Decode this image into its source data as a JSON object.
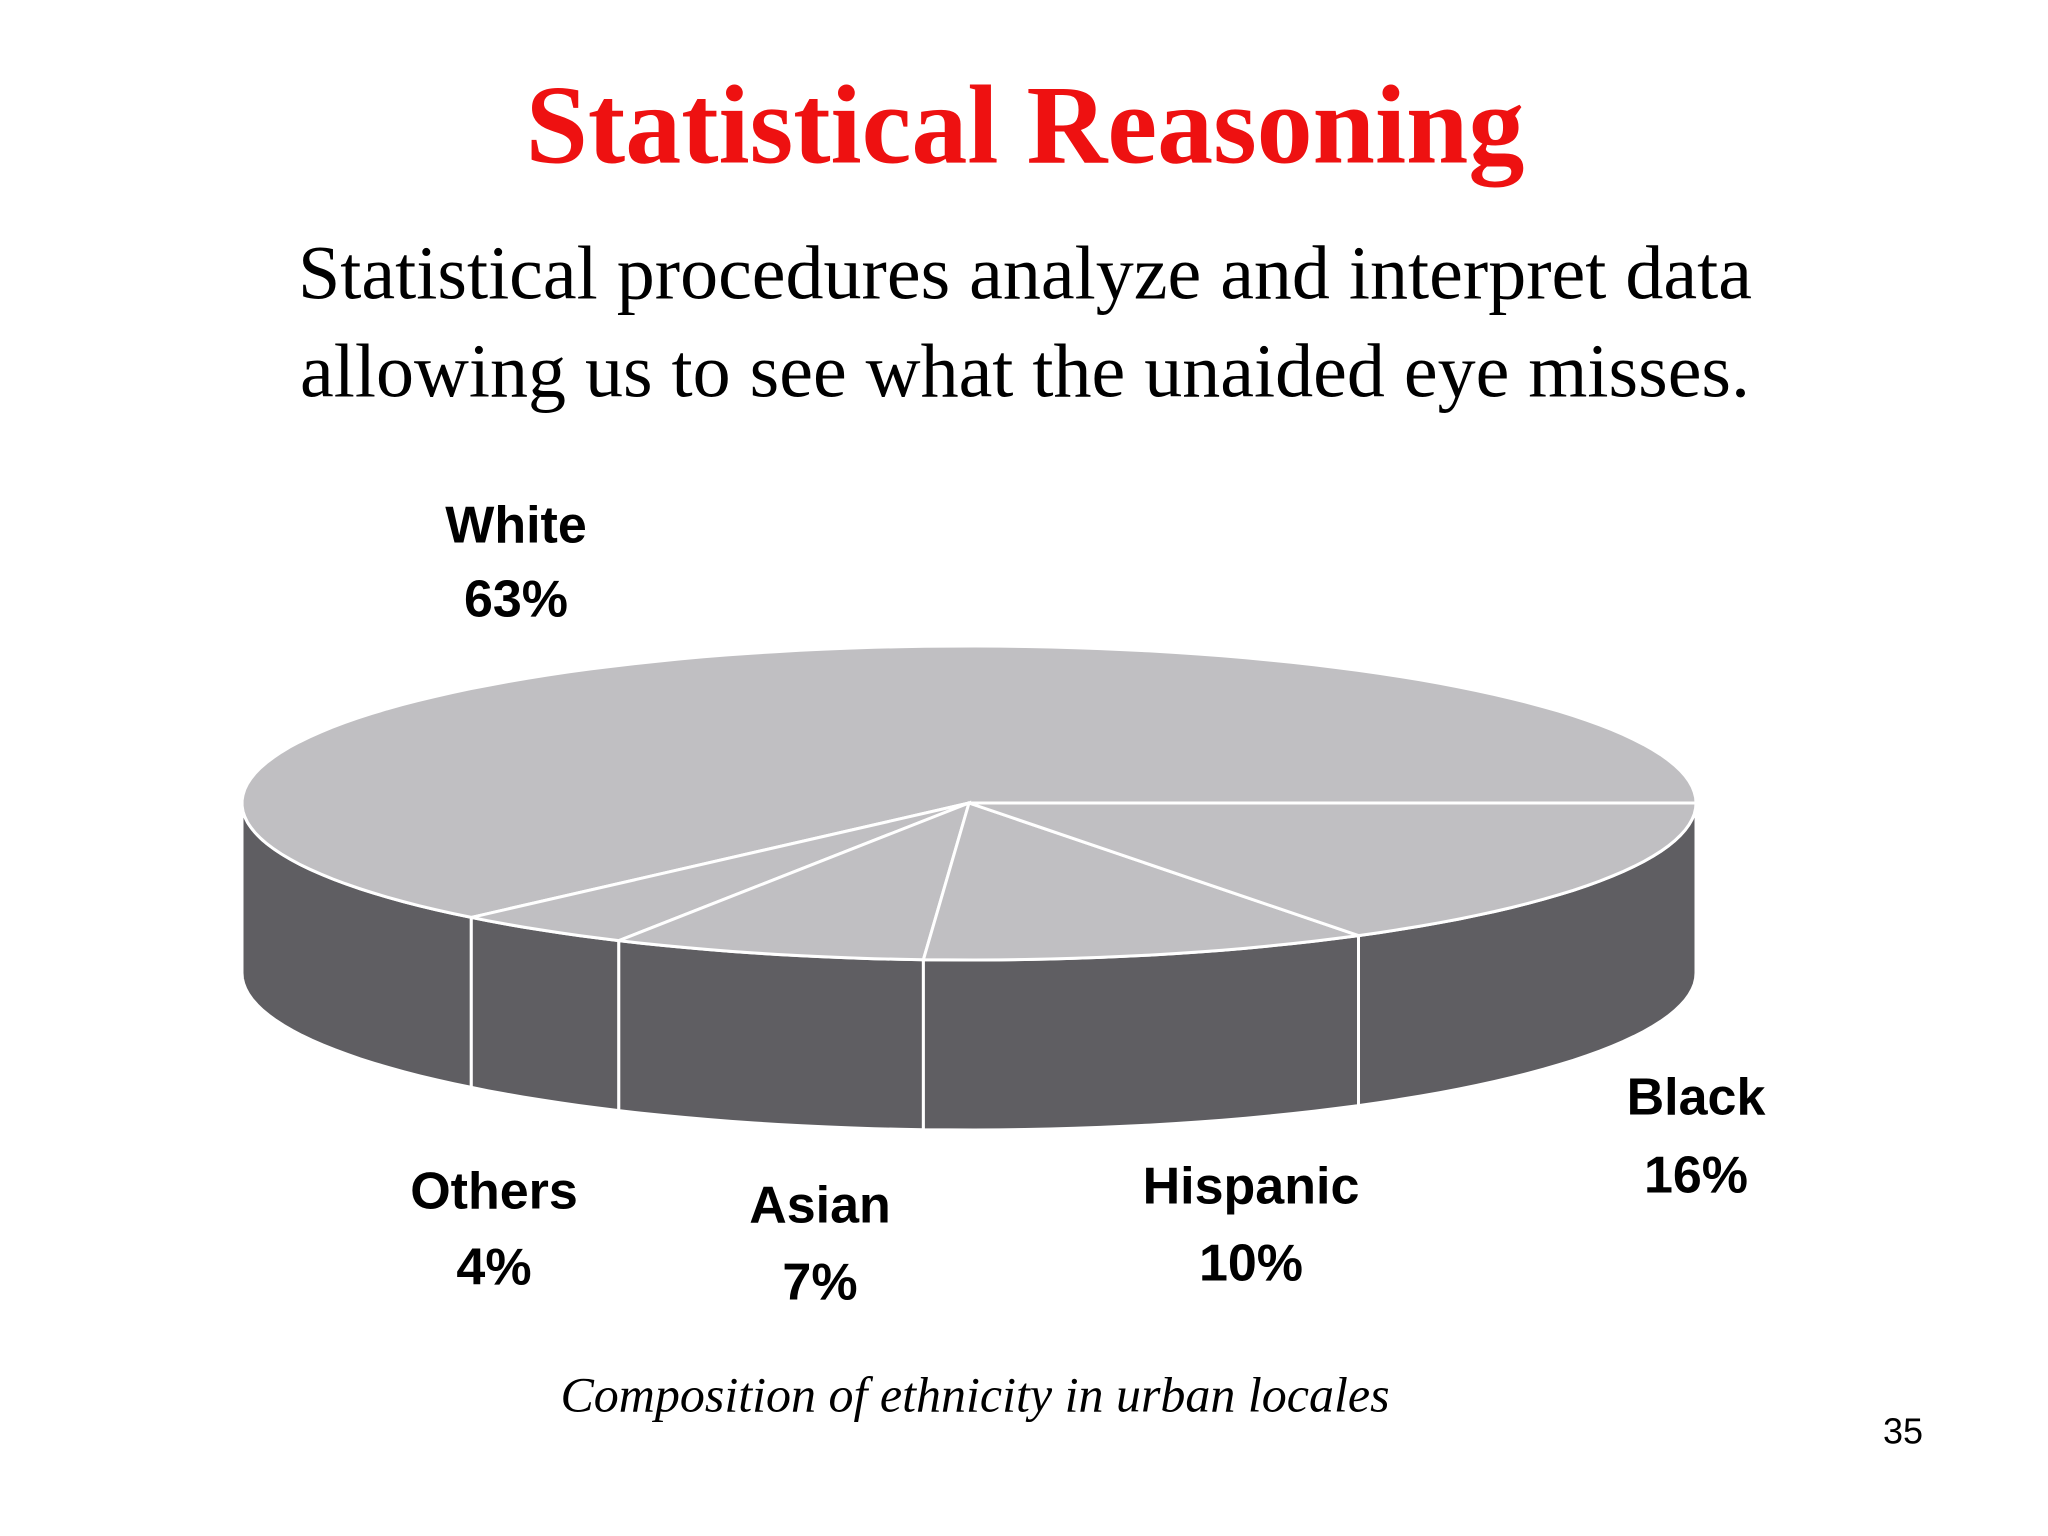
{
  "slide": {
    "title": "Statistical Reasoning",
    "body_lines": [
      "Statistical procedures analyze and interpret data",
      "allowing us to see what the unaided eye misses."
    ],
    "page_number": "35"
  },
  "chart_data": {
    "type": "pie",
    "caption": "Composition of ethnicity in urban locales",
    "categories": [
      "White",
      "Others",
      "Asian",
      "Hispanic",
      "Black"
    ],
    "values": [
      63,
      4,
      7,
      10,
      16
    ],
    "value_labels": [
      "63%",
      "4%",
      "7%",
      "10%",
      "16%"
    ],
    "top_color": "#c0bfc2",
    "side_color": "#5f5e62",
    "edge_color": "#ffffff"
  }
}
